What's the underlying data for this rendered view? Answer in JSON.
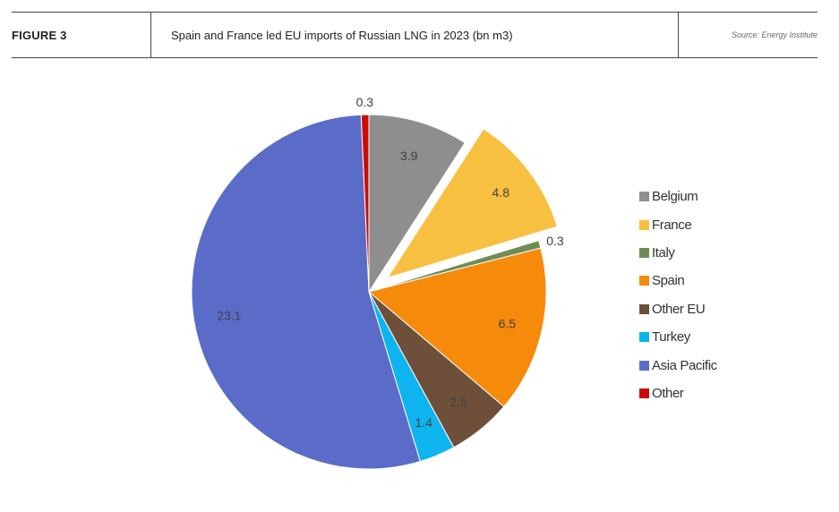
{
  "header": {
    "figure_label": "FIGURE 3",
    "title": "Spain and France led EU imports of Russian LNG in 2023 (bn m3)",
    "source": "Source: Energy Institute"
  },
  "chart_data": {
    "type": "pie",
    "title": "Spain and France led EU imports of Russian LNG in 2023 (bn m3)",
    "unit": "bn m3",
    "start": "12 o'clock",
    "direction": "clockwise",
    "exploded": [
      "France"
    ],
    "slices": [
      {
        "label": "Belgium",
        "value": 3.9,
        "display": "3.9",
        "color": "#8e8e8e"
      },
      {
        "label": "France",
        "value": 4.8,
        "display": "4.8",
        "color": "#f8c040"
      },
      {
        "label": "Italy",
        "value": 0.3,
        "display": "0.3",
        "color": "#6f8c55"
      },
      {
        "label": "Spain",
        "value": 6.5,
        "display": "6.5",
        "color": "#f68a0b"
      },
      {
        "label": "Other EU",
        "value": 2.5,
        "display": "2.5",
        "color": "#6e4f3a"
      },
      {
        "label": "Turkey",
        "value": 1.4,
        "display": "1.4",
        "color": "#0eb4ee"
      },
      {
        "label": "Asia Pacific",
        "value": 23.1,
        "display": "23.1",
        "color": "#5a6cc8"
      },
      {
        "label": "Other",
        "value": 0.3,
        "display": "0.3",
        "color": "#cc0a0a"
      }
    ],
    "legend_position": "right"
  }
}
